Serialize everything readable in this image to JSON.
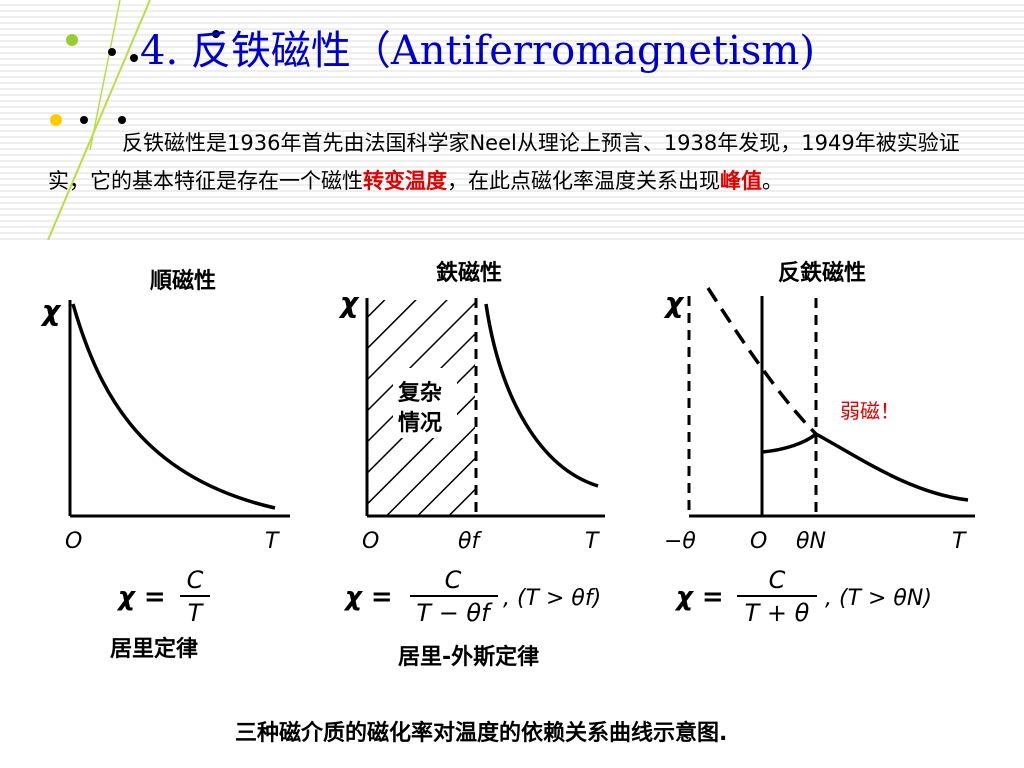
{
  "slide": {
    "title": "4. 反铁磁性（Antiferromagnetism)",
    "paragraph": {
      "part1": "反铁磁性是1936年首先由法国科学家Neel从理论上预言、1938年发现，1949年被实验证实，它的基本特征是存在一个磁性",
      "highlight1": "转变温度",
      "part2": "，在此点磁化率温度关系出现",
      "highlight2": "峰值",
      "part3": "。"
    }
  },
  "figure": {
    "caption": "三种磁介质的磁化率对温度的依赖关系曲线示意图.",
    "panels": [
      {
        "title": "順磁性",
        "y_label": "χ",
        "x_ticks": [
          "O",
          "T"
        ],
        "formula": {
          "lhs": "χ =",
          "numerator": "C",
          "denominator": "T",
          "condition": ""
        },
        "law": "居里定律"
      },
      {
        "title": "鉄磁性",
        "y_label": "χ",
        "x_ticks": [
          "O",
          "θf",
          "T"
        ],
        "hatched_label_line1": "复杂",
        "hatched_label_line2": "情况",
        "formula": {
          "lhs": "χ =",
          "numerator": "C",
          "denominator": "T − θf",
          "condition": ", (T > θf)"
        },
        "law": "居里-外斯定律"
      },
      {
        "title": "反鉄磁性",
        "y_label": "χ",
        "x_ticks": [
          "−θ",
          "O",
          "θN",
          "T"
        ],
        "annotation": "弱磁！",
        "formula": {
          "lhs": "χ =",
          "numerator": "C",
          "denominator": "T + θ",
          "condition": ", (T > θN)"
        },
        "law": ""
      }
    ]
  },
  "colors": {
    "title": "#0000cc",
    "highlight": "#e00000",
    "dot_green": "#99cc33",
    "dot_yellow": "#ffcc00",
    "line_green": "#bbdd44"
  }
}
